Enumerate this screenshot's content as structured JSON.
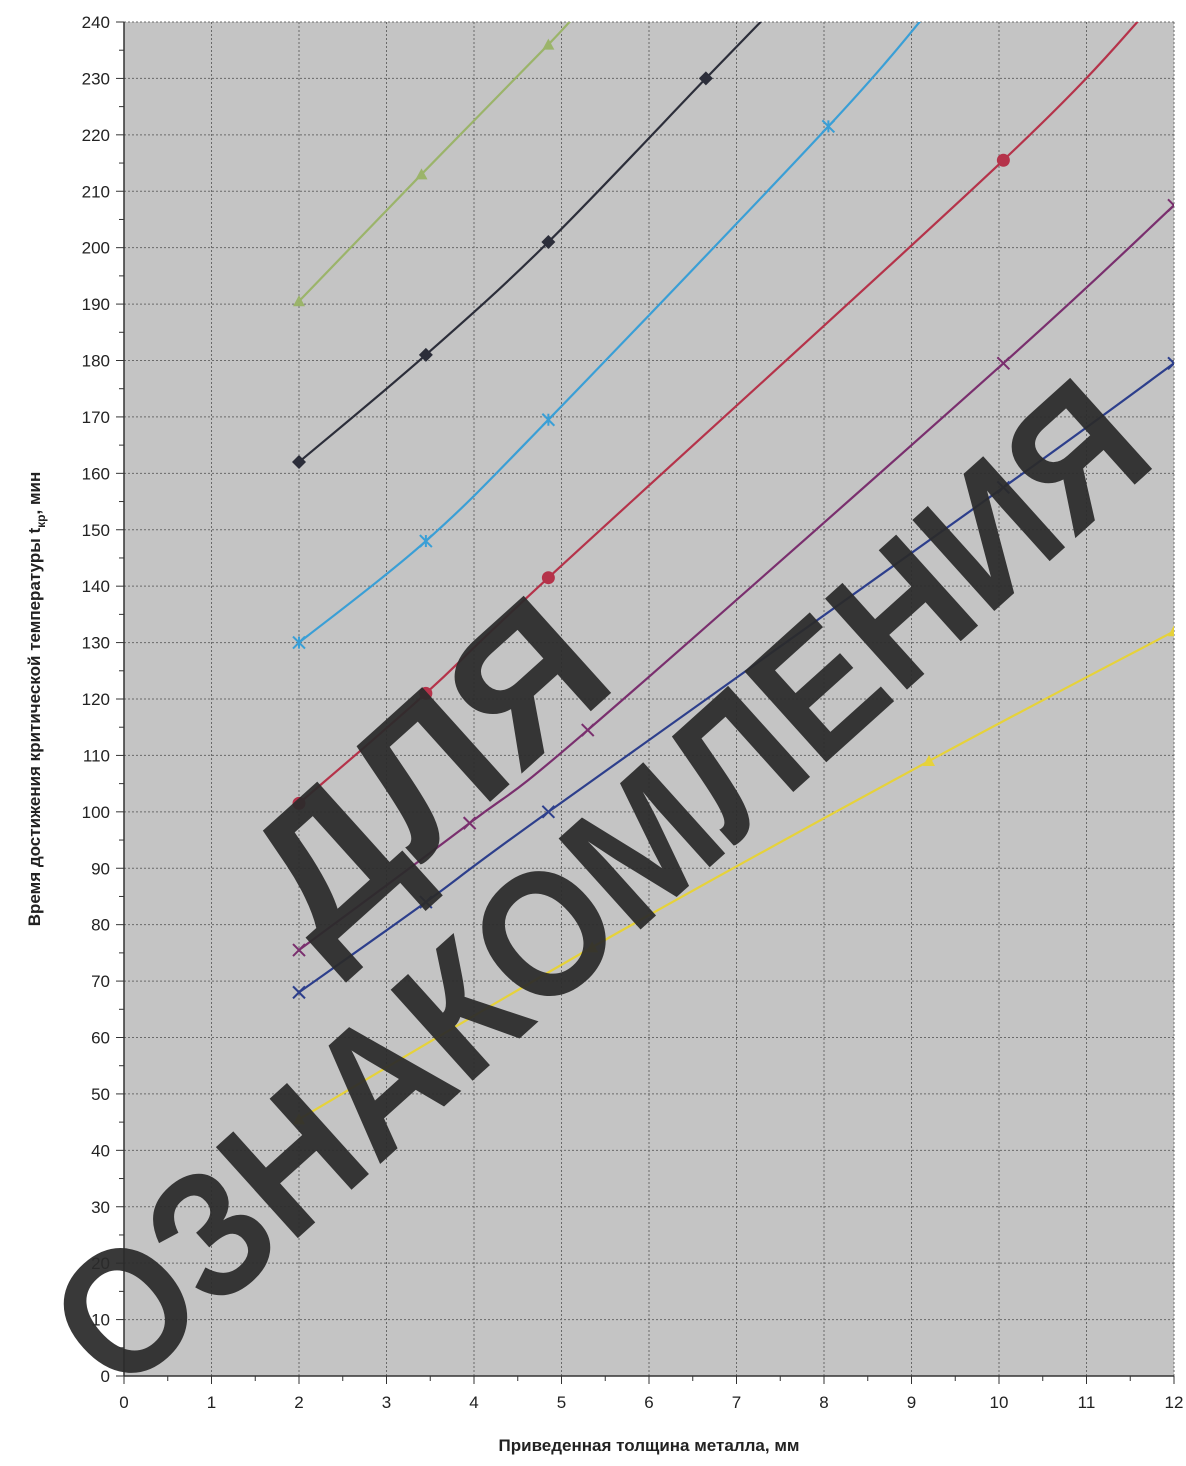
{
  "chart_data": {
    "type": "line",
    "title": "",
    "xlabel": "Приведенная толщина металла, мм",
    "ylabel_main": "Время достижения критической температуры t",
    "ylabel_sub": "кр",
    "ylabel_tail": ", мин",
    "xlim": [
      0,
      12
    ],
    "ylim": [
      0,
      240
    ],
    "x_ticks": [
      "0",
      "1",
      "2",
      "3",
      "4",
      "5",
      "6",
      "7",
      "8",
      "9",
      "10",
      "11",
      "12"
    ],
    "y_ticks": [
      "0",
      "10",
      "20",
      "30",
      "40",
      "50",
      "60",
      "70",
      "80",
      "90",
      "100",
      "110",
      "120",
      "130",
      "140",
      "150",
      "160",
      "170",
      "180",
      "190",
      "200",
      "210",
      "220",
      "230",
      "240"
    ],
    "grid": true,
    "legend": "none",
    "series": [
      {
        "color": "#9bb46a",
        "marker": "triangle",
        "points": [
          [
            2.0,
            190.5
          ],
          [
            3.4,
            213
          ],
          [
            4.85,
            236
          ],
          [
            5.2,
            242
          ]
        ]
      },
      {
        "color": "#2c2e3a",
        "marker": "diamond",
        "points": [
          [
            2.0,
            162
          ],
          [
            3.45,
            181
          ],
          [
            4.85,
            201
          ],
          [
            6.65,
            230
          ],
          [
            7.4,
            242
          ]
        ]
      },
      {
        "color": "#3a9fd6",
        "marker": "star",
        "points": [
          [
            2.0,
            130
          ],
          [
            3.45,
            148
          ],
          [
            4.85,
            169.5
          ],
          [
            8.05,
            221.5
          ],
          [
            9.2,
            242
          ]
        ]
      },
      {
        "color": "#b5334a",
        "marker": "circle",
        "points": [
          [
            2.0,
            101.5
          ],
          [
            3.45,
            121
          ],
          [
            4.85,
            141.5
          ],
          [
            10.05,
            215.5
          ],
          [
            11.7,
            242
          ]
        ]
      },
      {
        "color": "#7a2f6e",
        "marker": "x",
        "points": [
          [
            2.0,
            75.5
          ],
          [
            3.95,
            98
          ],
          [
            5.3,
            114.5
          ],
          [
            10.05,
            179.5
          ],
          [
            12.0,
            207.5
          ]
        ]
      },
      {
        "color": "#2d3f8c",
        "marker": "x",
        "points": [
          [
            2.0,
            68
          ],
          [
            3.45,
            84
          ],
          [
            4.85,
            100
          ],
          [
            10.05,
            157.5
          ],
          [
            12.0,
            179.5
          ]
        ]
      },
      {
        "color": "#e6d23a",
        "marker": "triangle",
        "points": [
          [
            2.0,
            45.5
          ],
          [
            5.35,
            76
          ],
          [
            9.2,
            109
          ],
          [
            12.0,
            132
          ]
        ]
      }
    ]
  },
  "colors": {
    "plot_background": "#c4c4c4",
    "grid_line": "#6a6a6a"
  },
  "watermark": {
    "line1": "ДЛЯ",
    "line2": "ОЗНАКОМЛЕНИЯ"
  }
}
